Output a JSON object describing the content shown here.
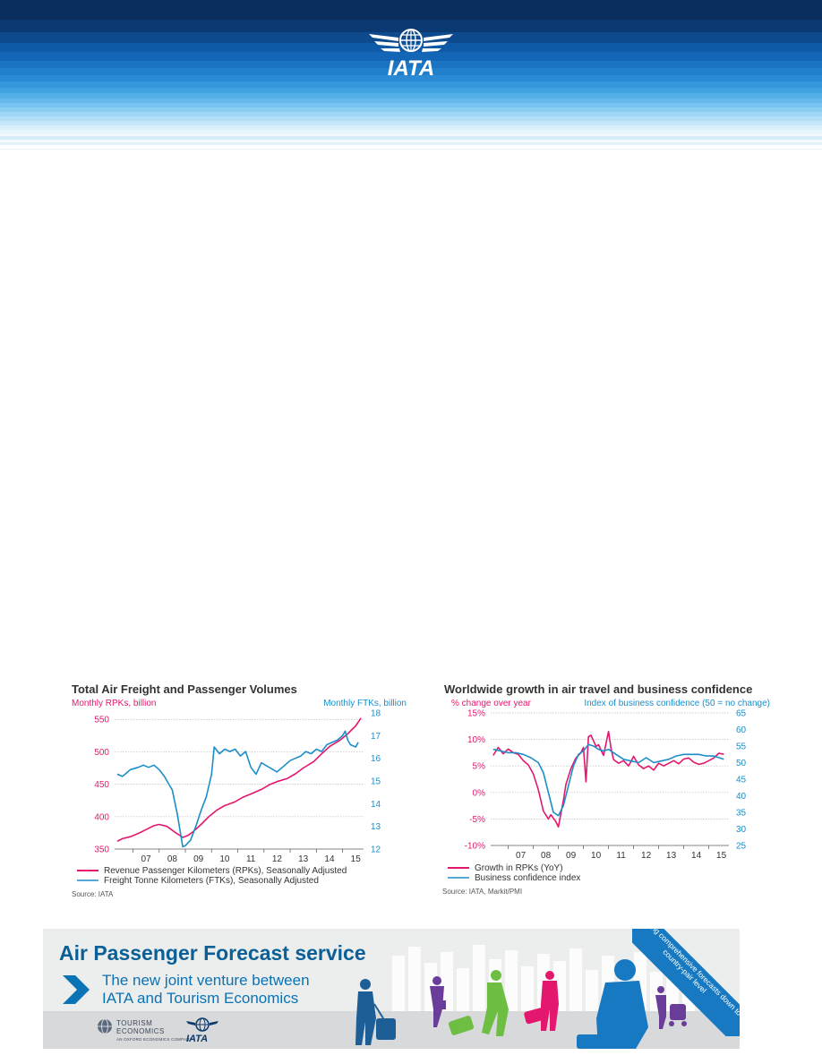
{
  "header": {
    "logo_text": "IATA"
  },
  "chart_data": [
    {
      "type": "line",
      "title": "Total Air Freight and Passenger Volumes",
      "ylabel_left": "Monthly RPKs, billion",
      "ylabel_right": "Monthly FTKs, billion",
      "x_tick_labels": [
        "07",
        "08",
        "09",
        "10",
        "11",
        "12",
        "13",
        "14",
        "15"
      ],
      "x_range": [
        2006.3,
        2015.8
      ],
      "ylim_left": [
        350,
        560
      ],
      "ylim_right": [
        12,
        18
      ],
      "y_ticks_left": [
        350,
        400,
        450,
        500,
        550
      ],
      "y_ticks_right": [
        12,
        13,
        14,
        15,
        16,
        17,
        18
      ],
      "grid": true,
      "legend": [
        "Revenue Passenger Kilometers (RPKs), Seasonally Adjusted",
        "Freight Tonne Kilometers (FTKs), Seasonally Adjusted"
      ],
      "source": "Source: IATA",
      "series": [
        {
          "name": "Revenue Passenger Kilometers (RPKs), Seasonally Adjusted",
          "axis": "left",
          "color": "#e4176e",
          "x": [
            2006.4,
            2006.6,
            2006.9,
            2007.2,
            2007.5,
            2007.8,
            2008.0,
            2008.3,
            2008.6,
            2008.9,
            2009.1,
            2009.3,
            2009.6,
            2009.9,
            2010.2,
            2010.5,
            2010.9,
            2011.2,
            2011.5,
            2011.9,
            2012.2,
            2012.5,
            2012.9,
            2013.2,
            2013.5,
            2013.9,
            2014.2,
            2014.5,
            2014.9,
            2015.2,
            2015.5,
            2015.7
          ],
          "y": [
            362,
            366,
            369,
            374,
            380,
            386,
            388,
            385,
            376,
            368,
            371,
            377,
            388,
            400,
            410,
            417,
            423,
            430,
            435,
            442,
            449,
            454,
            459,
            466,
            475,
            485,
            497,
            508,
            518,
            528,
            540,
            552
          ]
        },
        {
          "name": "Freight Tonne Kilometers (FTKs), Seasonally Adjusted",
          "axis": "right",
          "color": "#1b8ec9",
          "x": [
            2006.4,
            2006.6,
            2006.9,
            2007.2,
            2007.4,
            2007.6,
            2007.8,
            2008.0,
            2008.2,
            2008.5,
            2008.7,
            2008.9,
            2009.0,
            2009.2,
            2009.4,
            2009.6,
            2009.8,
            2010.0,
            2010.1,
            2010.3,
            2010.5,
            2010.7,
            2010.9,
            2011.1,
            2011.3,
            2011.5,
            2011.7,
            2011.9,
            2012.2,
            2012.5,
            2012.8,
            2013.0,
            2013.2,
            2013.4,
            2013.6,
            2013.8,
            2014.0,
            2014.2,
            2014.4,
            2014.6,
            2014.8,
            2015.0,
            2015.1,
            2015.2,
            2015.3,
            2015.5,
            2015.6
          ],
          "y": [
            15.3,
            15.2,
            15.5,
            15.6,
            15.7,
            15.6,
            15.7,
            15.5,
            15.2,
            14.6,
            13.5,
            12.1,
            12.15,
            12.4,
            13.0,
            13.7,
            14.3,
            15.3,
            16.5,
            16.2,
            16.4,
            16.3,
            16.4,
            16.1,
            16.3,
            15.6,
            15.3,
            15.8,
            15.6,
            15.4,
            15.7,
            15.9,
            16.0,
            16.1,
            16.3,
            16.2,
            16.4,
            16.3,
            16.6,
            16.7,
            16.8,
            17.0,
            17.2,
            16.8,
            16.6,
            16.5,
            16.7
          ]
        }
      ]
    },
    {
      "type": "line",
      "title": "Worldwide growth in air travel and business confidence",
      "ylabel_left": "% change over year",
      "ylabel_right": "Index of business confidence (50 = no change)",
      "x_tick_labels": [
        "07",
        "08",
        "09",
        "10",
        "11",
        "12",
        "13",
        "14",
        "15"
      ],
      "x_range": [
        2006.3,
        2015.8
      ],
      "ylim_left": [
        -10,
        15
      ],
      "ylim_right": [
        25,
        65
      ],
      "y_ticks_left": [
        "-10%",
        "-5%",
        "0%",
        "5%",
        "10%",
        "15%"
      ],
      "y_ticks_left_values": [
        -10,
        -5,
        0,
        5,
        10,
        15
      ],
      "y_ticks_right": [
        25,
        30,
        35,
        40,
        45,
        50,
        55,
        60,
        65
      ],
      "grid": true,
      "legend": [
        "Growth in RPKs (YoY)",
        "Business confidence index"
      ],
      "source": "Source: IATA, Markit/PMI",
      "series": [
        {
          "name": "Growth in RPKs (YoY)",
          "axis": "left",
          "color": "#e4176e",
          "x": [
            2006.4,
            2006.6,
            2006.8,
            2007.0,
            2007.2,
            2007.4,
            2007.6,
            2007.8,
            2008.0,
            2008.2,
            2008.4,
            2008.6,
            2008.7,
            2008.9,
            2009.0,
            2009.1,
            2009.2,
            2009.3,
            2009.5,
            2009.7,
            2009.9,
            2010.0,
            2010.1,
            2010.2,
            2010.3,
            2010.5,
            2010.6,
            2010.8,
            2011.0,
            2011.1,
            2011.2,
            2011.4,
            2011.6,
            2011.8,
            2012.0,
            2012.2,
            2012.4,
            2012.6,
            2012.8,
            2013.0,
            2013.2,
            2013.4,
            2013.6,
            2013.8,
            2014.0,
            2014.2,
            2014.4,
            2014.6,
            2014.8,
            2015.0,
            2015.2,
            2015.4,
            2015.6
          ],
          "y": [
            7.0,
            8.5,
            7.3,
            8.2,
            7.5,
            7.2,
            6.0,
            5.2,
            3.5,
            0.5,
            -3.5,
            -5.0,
            -4.2,
            -5.5,
            -6.5,
            -4.0,
            -1.5,
            1.5,
            4.5,
            6.5,
            7.5,
            8.5,
            2.0,
            10.5,
            10.8,
            8.7,
            9.0,
            7.0,
            11.5,
            8.3,
            6.2,
            5.5,
            6.0,
            5.0,
            6.8,
            5.2,
            4.5,
            5.0,
            4.2,
            5.5,
            5.0,
            5.5,
            6.0,
            5.4,
            6.3,
            6.5,
            5.7,
            5.3,
            5.5,
            6.0,
            6.5,
            7.4,
            7.2
          ]
        },
        {
          "name": "Business confidence index",
          "axis": "right",
          "color": "#1b8ec9",
          "x": [
            2006.4,
            2006.7,
            2007.0,
            2007.3,
            2007.6,
            2007.9,
            2008.2,
            2008.4,
            2008.6,
            2008.8,
            2009.0,
            2009.2,
            2009.4,
            2009.6,
            2009.8,
            2010.0,
            2010.2,
            2010.4,
            2010.6,
            2010.8,
            2011.0,
            2011.3,
            2011.6,
            2011.9,
            2012.2,
            2012.5,
            2012.8,
            2013.1,
            2013.4,
            2013.7,
            2014.0,
            2014.3,
            2014.6,
            2014.9,
            2015.2,
            2015.6
          ],
          "y": [
            54,
            53.5,
            53,
            53,
            52.5,
            51.5,
            50,
            47,
            41,
            35,
            34,
            37,
            43,
            49,
            52.5,
            53.5,
            55.5,
            55,
            54,
            53.5,
            54,
            52.5,
            51,
            50.5,
            50,
            51.5,
            50,
            50.5,
            51,
            52,
            52.5,
            52.5,
            52.5,
            52,
            52,
            51
          ]
        }
      ]
    }
  ],
  "ad": {
    "title": "Air Passenger Forecast service",
    "subtitle_line1": "The new joint venture between",
    "subtitle_line2": "IATA and Tourism Economics",
    "ribbon": "Including comprehensive forecasts down to a country-pair level",
    "tourism_logo_line1": "TOURISM",
    "tourism_logo_line2": "ECONOMICS",
    "tourism_logo_line3": "AN OXFORD ECONOMICS COMPANY",
    "iata_logo_text": "IATA"
  }
}
